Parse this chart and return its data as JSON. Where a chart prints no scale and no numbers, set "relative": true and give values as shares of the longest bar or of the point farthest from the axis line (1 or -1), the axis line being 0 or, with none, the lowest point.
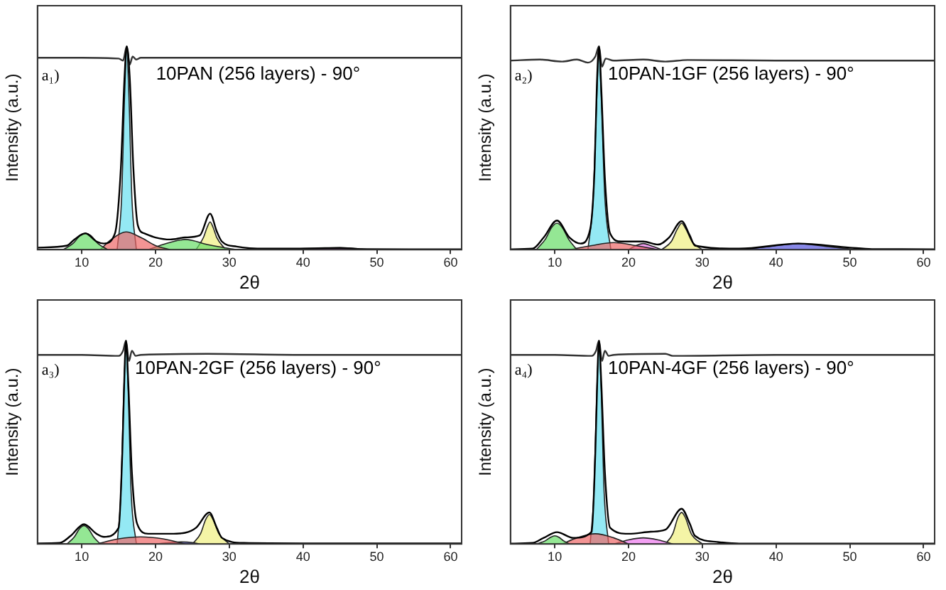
{
  "chart_data": [
    {
      "type": "line",
      "relative": true,
      "title": "10PAN (256 layers) - 90°",
      "xlabel": "2θ",
      "ylabel": "Intensity (a.u.)",
      "annotations": [
        "a₁)"
      ],
      "xlim": [
        4,
        61.5
      ],
      "xticks": [
        10,
        20,
        30,
        40,
        50,
        60
      ],
      "series": [
        {
          "type": "area",
          "color": "#66dd66",
          "x": [
            7.5,
            8.8,
            9.8,
            10.5,
            11.2,
            12.2,
            13.5
          ],
          "values": [
            0,
            0.03,
            0.07,
            0.08,
            0.07,
            0.03,
            0
          ]
        },
        {
          "type": "area",
          "color": "#ee6666",
          "x": [
            12.5,
            14,
            16,
            18,
            20,
            22
          ],
          "values": [
            0,
            0.05,
            0.087,
            0.06,
            0.02,
            0
          ]
        },
        {
          "type": "area",
          "color": "#66dd66",
          "x": [
            19,
            21,
            23,
            24,
            25,
            27,
            31
          ],
          "values": [
            0,
            0.025,
            0.045,
            0.05,
            0.045,
            0.025,
            0
          ]
        },
        {
          "type": "area",
          "color": "#f0f080",
          "x": [
            25.5,
            26.5,
            27,
            27.4,
            27.8,
            28.3,
            29.5
          ],
          "values": [
            0,
            0.06,
            0.11,
            0.136,
            0.11,
            0.06,
            0
          ]
        },
        {
          "type": "area",
          "color": "#ee77ee",
          "x": [
            37,
            40,
            43,
            45,
            47,
            49
          ],
          "values": [
            0,
            0.006,
            0.009,
            0.01,
            0.006,
            0
          ]
        },
        {
          "type": "area",
          "color": "#66e0f0",
          "x": [
            14.8,
            15.4,
            15.8,
            16.1,
            16.4,
            16.8,
            17.4
          ],
          "values": [
            0,
            0.25,
            0.75,
            0.98,
            0.75,
            0.25,
            0
          ]
        },
        {
          "type": "line",
          "color": "#000000",
          "x": [
            4,
            8,
            9,
            10.5,
            12,
            13,
            14.5,
            15.3,
            15.8,
            16.1,
            16.5,
            17,
            17.6,
            18.5,
            20,
            22,
            24,
            26,
            27.4,
            28.3,
            29,
            31,
            35,
            40,
            45,
            48,
            55,
            61.5
          ],
          "values": [
            0.01,
            0.02,
            0.05,
            0.08,
            0.04,
            0.03,
            0.08,
            0.4,
            0.85,
            1,
            0.85,
            0.4,
            0.12,
            0.08,
            0.06,
            0.05,
            0.06,
            0.07,
            0.177,
            0.09,
            0.04,
            0.015,
            0.005,
            0.005,
            0.008,
            0.003,
            0.002,
            0.002
          ]
        },
        {
          "type": "line",
          "color": "#333333",
          "x": [
            4,
            10,
            15,
            15.6,
            16.1,
            16.5,
            16.9,
            17.4,
            18,
            25,
            40,
            61.5
          ],
          "values": [
            0.944,
            0.944,
            0.94,
            0.93,
            1,
            0.91,
            0.95,
            0.935,
            0.944,
            0.944,
            0.944,
            0.944
          ]
        }
      ]
    },
    {
      "type": "line",
      "relative": true,
      "title": "10PAN-1GF (256 layers) - 90°",
      "xlabel": "2θ",
      "ylabel": "Intensity (a.u.)",
      "annotations": [
        "a₂)"
      ],
      "xlim": [
        4,
        61.5
      ],
      "xticks": [
        10,
        20,
        30,
        40,
        50,
        60
      ],
      "series": [
        {
          "type": "area",
          "color": "#66dd66",
          "x": [
            7.5,
            8.7,
            9.6,
            10.3,
            11,
            11.9,
            13
          ],
          "values": [
            0,
            0.05,
            0.11,
            0.13,
            0.11,
            0.05,
            0
          ]
        },
        {
          "type": "area",
          "color": "#ee6666",
          "x": [
            12,
            15,
            18,
            21,
            24
          ],
          "values": [
            0,
            0.02,
            0.035,
            0.02,
            0
          ]
        },
        {
          "type": "area",
          "color": "#ee77ee",
          "x": [
            20,
            21,
            22,
            23,
            24.5
          ],
          "values": [
            0,
            0.02,
            0.03,
            0.02,
            0
          ]
        },
        {
          "type": "area",
          "color": "#f0f080",
          "x": [
            24.5,
            25.8,
            26.6,
            27.2,
            27.8,
            28.6,
            30
          ],
          "values": [
            0,
            0.04,
            0.1,
            0.13,
            0.1,
            0.04,
            0
          ]
        },
        {
          "type": "area",
          "color": "#5555dd",
          "x": [
            35,
            39,
            43,
            47,
            51
          ],
          "values": [
            0,
            0.015,
            0.03,
            0.015,
            0
          ]
        },
        {
          "type": "area",
          "color": "#66e0f0",
          "x": [
            14.5,
            15.2,
            15.7,
            16,
            16.3,
            16.8,
            17.6
          ],
          "values": [
            0,
            0.25,
            0.75,
            0.97,
            0.75,
            0.25,
            0
          ]
        },
        {
          "type": "line",
          "color": "#000000",
          "x": [
            4,
            7,
            8.5,
            10.3,
            12,
            13.5,
            14.8,
            15.4,
            15.7,
            16,
            16.3,
            16.8,
            17.5,
            19,
            22,
            24,
            25.5,
            27.2,
            28.3,
            29,
            35,
            43,
            50,
            53,
            61.5
          ],
          "values": [
            0.002,
            0.005,
            0.06,
            0.143,
            0.06,
            0.03,
            0.1,
            0.4,
            0.8,
            1,
            0.8,
            0.35,
            0.08,
            0.04,
            0.04,
            0.025,
            0.06,
            0.14,
            0.07,
            0.02,
            0.005,
            0.03,
            0.01,
            0.003,
            0.002
          ]
        },
        {
          "type": "line",
          "color": "#333333",
          "x": [
            4,
            8,
            11,
            13,
            14.5,
            15.5,
            16,
            16.4,
            16.9,
            18,
            22,
            25,
            28,
            40,
            61.5
          ],
          "values": [
            0.93,
            0.935,
            0.925,
            0.935,
            0.92,
            0.95,
            1,
            0.9,
            0.94,
            0.93,
            0.935,
            0.925,
            0.933,
            0.93,
            0.93
          ]
        }
      ]
    },
    {
      "type": "line",
      "relative": true,
      "title": "10PAN-2GF (256 layers) - 90°",
      "xlabel": "2θ",
      "ylabel": "Intensity (a.u.)",
      "annotations": [
        "a₃)"
      ],
      "xlim": [
        4,
        61.5
      ],
      "xticks": [
        10,
        20,
        30,
        40,
        50,
        60
      ],
      "series": [
        {
          "type": "area",
          "color": "#66dd66",
          "x": [
            8,
            9,
            9.7,
            10.3,
            10.9,
            11.6,
            12.5
          ],
          "values": [
            0,
            0.035,
            0.075,
            0.09,
            0.075,
            0.035,
            0
          ]
        },
        {
          "type": "area",
          "color": "#ee6666",
          "x": [
            12,
            15,
            18,
            21,
            24
          ],
          "values": [
            0,
            0.025,
            0.035,
            0.025,
            0
          ]
        },
        {
          "type": "area",
          "color": "#5555dd",
          "x": [
            20,
            22,
            23.5,
            25,
            26
          ],
          "values": [
            0,
            0.007,
            0.01,
            0.007,
            0
          ]
        },
        {
          "type": "area",
          "color": "#f0f080",
          "x": [
            25,
            26.1,
            26.8,
            27.3,
            27.8,
            28.6,
            30
          ],
          "values": [
            0,
            0.05,
            0.12,
            0.145,
            0.12,
            0.05,
            0
          ]
        },
        {
          "type": "area",
          "color": "#66e0f0",
          "x": [
            14.8,
            15.3,
            15.7,
            16,
            16.3,
            16.7,
            17.4
          ],
          "values": [
            0,
            0.25,
            0.75,
            0.97,
            0.75,
            0.25,
            0
          ]
        },
        {
          "type": "line",
          "color": "#000000",
          "x": [
            4,
            7,
            8.5,
            10.3,
            12,
            13,
            15,
            15.5,
            15.8,
            16,
            16.3,
            16.8,
            17.5,
            19,
            22,
            24,
            25.5,
            27.3,
            28.3,
            29,
            32,
            40,
            61.5
          ],
          "values": [
            0.003,
            0.005,
            0.04,
            0.097,
            0.05,
            0.035,
            0.08,
            0.45,
            0.85,
            1,
            0.8,
            0.35,
            0.1,
            0.05,
            0.05,
            0.055,
            0.08,
            0.155,
            0.08,
            0.03,
            0.005,
            0.003,
            0.003
          ]
        },
        {
          "type": "line",
          "color": "#333333",
          "x": [
            4,
            10,
            15,
            15.6,
            16,
            16.4,
            16.8,
            17.3,
            18,
            27,
            40,
            61.5
          ],
          "values": [
            0.93,
            0.93,
            0.925,
            0.95,
            1,
            0.9,
            0.95,
            0.925,
            0.93,
            0.935,
            0.93,
            0.93
          ]
        }
      ]
    },
    {
      "type": "line",
      "relative": true,
      "title": "10PAN-4GF (256 layers) - 90°",
      "xlabel": "2θ",
      "ylabel": "Intensity (a.u.)",
      "annotations": [
        "a₄)"
      ],
      "xlim": [
        4,
        61.5
      ],
      "xticks": [
        10,
        20,
        30,
        40,
        50,
        60
      ],
      "series": [
        {
          "type": "area",
          "color": "#66dd66",
          "x": [
            7.5,
            8.7,
            9.4,
            10,
            10.6,
            11.2,
            12
          ],
          "values": [
            0,
            0.015,
            0.032,
            0.04,
            0.032,
            0.015,
            0
          ]
        },
        {
          "type": "area",
          "color": "#ee6666",
          "x": [
            11,
            13,
            15.5,
            18,
            20
          ],
          "values": [
            0,
            0.03,
            0.05,
            0.03,
            0
          ]
        },
        {
          "type": "area",
          "color": "#ee77ee",
          "x": [
            18,
            20,
            22,
            24,
            26
          ],
          "values": [
            0,
            0.02,
            0.03,
            0.02,
            0
          ]
        },
        {
          "type": "area",
          "color": "#f0f080",
          "x": [
            25,
            26,
            26.7,
            27.2,
            27.7,
            28.5,
            30
          ],
          "values": [
            0,
            0.05,
            0.13,
            0.155,
            0.13,
            0.05,
            0
          ]
        },
        {
          "type": "area",
          "color": "#66e0f0",
          "x": [
            14.8,
            15.3,
            15.7,
            16,
            16.3,
            16.7,
            17.3
          ],
          "values": [
            0,
            0.25,
            0.75,
            0.97,
            0.75,
            0.25,
            0
          ]
        },
        {
          "type": "line",
          "color": "#000000",
          "x": [
            4,
            7,
            8.5,
            10.3,
            12.5,
            15,
            15.5,
            15.8,
            16,
            16.3,
            16.8,
            17.5,
            20,
            23,
            25,
            27.2,
            28.3,
            29,
            32,
            35,
            61.5
          ],
          "values": [
            0.002,
            0.005,
            0.03,
            0.058,
            0.03,
            0.06,
            0.45,
            0.85,
            1,
            0.8,
            0.35,
            0.08,
            0.05,
            0.06,
            0.07,
            0.173,
            0.1,
            0.04,
            0.01,
            0.002,
            0.002
          ]
        },
        {
          "type": "line",
          "color": "#333333",
          "x": [
            4,
            10,
            15,
            15.6,
            16,
            16.4,
            16.8,
            17.3,
            18,
            25,
            26,
            40,
            54,
            61.5
          ],
          "values": [
            0.93,
            0.93,
            0.925,
            0.95,
            1,
            0.9,
            0.95,
            0.925,
            0.93,
            0.935,
            0.925,
            0.93,
            0.93,
            0.93
          ]
        }
      ]
    }
  ]
}
